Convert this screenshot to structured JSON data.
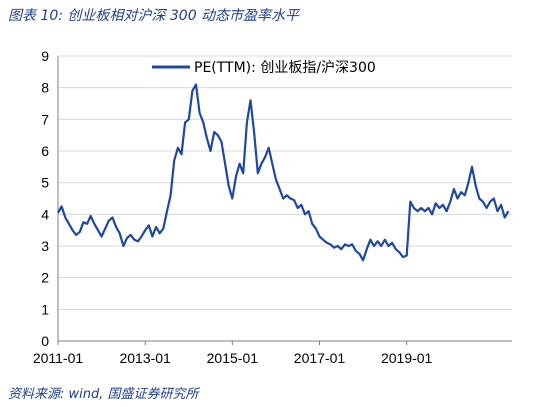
{
  "figure": {
    "title": "图表 10:  创业板相对沪深 300 动态市盈率水平",
    "source": "资料来源:  wind,  国盛证券研究所"
  },
  "chart_data": {
    "type": "line",
    "ylim": [
      0,
      9
    ],
    "y_ticks": [
      "0",
      "1",
      "2",
      "3",
      "4",
      "5",
      "6",
      "7",
      "8",
      "9"
    ],
    "x_range": [
      "2011-01",
      "2021-06"
    ],
    "x_ticks": [
      "2011-01",
      "2013-01",
      "2015-01",
      "2017-01",
      "2019-01"
    ],
    "grid": "horizontal",
    "legend": "top-center",
    "line_color": "#1f48a0",
    "series": [
      {
        "name": "PE(TTM):  创业板指/沪深300",
        "points": [
          [
            "2011-01",
            4.05
          ],
          [
            "2011-02",
            4.25
          ],
          [
            "2011-03",
            3.9
          ],
          [
            "2011-04",
            3.7
          ],
          [
            "2011-05",
            3.5
          ],
          [
            "2011-06",
            3.35
          ],
          [
            "2011-07",
            3.45
          ],
          [
            "2011-08",
            3.75
          ],
          [
            "2011-09",
            3.7
          ],
          [
            "2011-10",
            3.95
          ],
          [
            "2011-11",
            3.7
          ],
          [
            "2011-12",
            3.5
          ],
          [
            "2012-01",
            3.3
          ],
          [
            "2012-02",
            3.55
          ],
          [
            "2012-03",
            3.8
          ],
          [
            "2012-04",
            3.9
          ],
          [
            "2012-05",
            3.6
          ],
          [
            "2012-06",
            3.4
          ],
          [
            "2012-07",
            3.0
          ],
          [
            "2012-08",
            3.25
          ],
          [
            "2012-09",
            3.35
          ],
          [
            "2012-10",
            3.2
          ],
          [
            "2012-11",
            3.15
          ],
          [
            "2012-12",
            3.3
          ],
          [
            "2013-01",
            3.5
          ],
          [
            "2013-02",
            3.65
          ],
          [
            "2013-03",
            3.3
          ],
          [
            "2013-04",
            3.6
          ],
          [
            "2013-05",
            3.4
          ],
          [
            "2013-06",
            3.55
          ],
          [
            "2013-07",
            4.1
          ],
          [
            "2013-08",
            4.6
          ],
          [
            "2013-09",
            5.7
          ],
          [
            "2013-10",
            6.1
          ],
          [
            "2013-11",
            5.9
          ],
          [
            "2013-12",
            6.9
          ],
          [
            "2014-01",
            7.0
          ],
          [
            "2014-02",
            7.9
          ],
          [
            "2014-03",
            8.1
          ],
          [
            "2014-04",
            7.2
          ],
          [
            "2014-05",
            6.9
          ],
          [
            "2014-06",
            6.4
          ],
          [
            "2014-07",
            6.0
          ],
          [
            "2014-08",
            6.6
          ],
          [
            "2014-09",
            6.5
          ],
          [
            "2014-10",
            6.3
          ],
          [
            "2014-11",
            5.6
          ],
          [
            "2014-12",
            4.9
          ],
          [
            "2015-01",
            4.5
          ],
          [
            "2015-02",
            5.2
          ],
          [
            "2015-03",
            5.6
          ],
          [
            "2015-04",
            5.3
          ],
          [
            "2015-05",
            6.9
          ],
          [
            "2015-06",
            7.6
          ],
          [
            "2015-07",
            6.6
          ],
          [
            "2015-08",
            5.3
          ],
          [
            "2015-09",
            5.6
          ],
          [
            "2015-10",
            5.8
          ],
          [
            "2015-11",
            6.1
          ],
          [
            "2015-12",
            5.6
          ],
          [
            "2016-01",
            5.1
          ],
          [
            "2016-02",
            4.8
          ],
          [
            "2016-03",
            4.5
          ],
          [
            "2016-04",
            4.6
          ],
          [
            "2016-05",
            4.5
          ],
          [
            "2016-06",
            4.45
          ],
          [
            "2016-07",
            4.2
          ],
          [
            "2016-08",
            4.3
          ],
          [
            "2016-09",
            4.0
          ],
          [
            "2016-10",
            4.1
          ],
          [
            "2016-11",
            3.7
          ],
          [
            "2016-12",
            3.55
          ],
          [
            "2017-01",
            3.3
          ],
          [
            "2017-02",
            3.2
          ],
          [
            "2017-03",
            3.1
          ],
          [
            "2017-04",
            3.05
          ],
          [
            "2017-05",
            2.95
          ],
          [
            "2017-06",
            3.0
          ],
          [
            "2017-07",
            2.9
          ],
          [
            "2017-08",
            3.05
          ],
          [
            "2017-09",
            3.0
          ],
          [
            "2017-10",
            3.05
          ],
          [
            "2017-11",
            2.85
          ],
          [
            "2017-12",
            2.75
          ],
          [
            "2018-01",
            2.55
          ],
          [
            "2018-02",
            2.9
          ],
          [
            "2018-03",
            3.2
          ],
          [
            "2018-04",
            3.0
          ],
          [
            "2018-05",
            3.15
          ],
          [
            "2018-06",
            3.0
          ],
          [
            "2018-07",
            3.2
          ],
          [
            "2018-08",
            3.0
          ],
          [
            "2018-09",
            3.1
          ],
          [
            "2018-10",
            2.9
          ],
          [
            "2018-11",
            2.8
          ],
          [
            "2018-12",
            2.65
          ],
          [
            "2019-01",
            2.7
          ],
          [
            "2019-02",
            4.4
          ],
          [
            "2019-03",
            4.2
          ],
          [
            "2019-04",
            4.1
          ],
          [
            "2019-05",
            4.2
          ],
          [
            "2019-06",
            4.1
          ],
          [
            "2019-07",
            4.2
          ],
          [
            "2019-08",
            4.0
          ],
          [
            "2019-09",
            4.35
          ],
          [
            "2019-10",
            4.2
          ],
          [
            "2019-11",
            4.3
          ],
          [
            "2019-12",
            4.1
          ],
          [
            "2020-01",
            4.4
          ],
          [
            "2020-02",
            4.8
          ],
          [
            "2020-03",
            4.5
          ],
          [
            "2020-04",
            4.7
          ],
          [
            "2020-05",
            4.6
          ],
          [
            "2020-06",
            5.0
          ],
          [
            "2020-07",
            5.5
          ],
          [
            "2020-08",
            4.9
          ],
          [
            "2020-09",
            4.5
          ],
          [
            "2020-10",
            4.4
          ],
          [
            "2020-11",
            4.2
          ],
          [
            "2020-12",
            4.4
          ],
          [
            "2021-01",
            4.5
          ],
          [
            "2021-02",
            4.1
          ],
          [
            "2021-03",
            4.3
          ],
          [
            "2021-04",
            3.9
          ],
          [
            "2021-05",
            4.1
          ]
        ]
      }
    ]
  }
}
